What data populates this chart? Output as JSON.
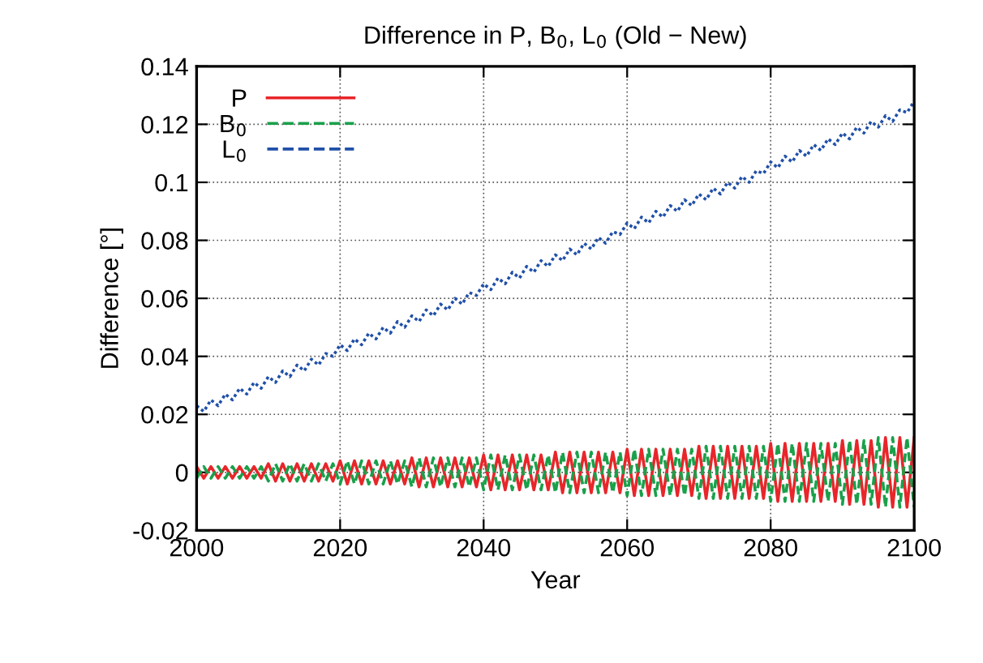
{
  "chart_data": {
    "type": "line",
    "title": "Difference in P, B$_{0}$, L$_{0}$ (Old − New)",
    "xlabel": "Year",
    "ylabel": "Difference [°]",
    "x": [
      2000,
      2001,
      2002,
      2003,
      2004,
      2005,
      2006,
      2007,
      2008,
      2009,
      2010,
      2011,
      2012,
      2013,
      2014,
      2015,
      2016,
      2017,
      2018,
      2019,
      2020,
      2021,
      2022,
      2023,
      2024,
      2025,
      2026,
      2027,
      2028,
      2029,
      2030,
      2031,
      2032,
      2033,
      2034,
      2035,
      2036,
      2037,
      2038,
      2039,
      2040,
      2041,
      2042,
      2043,
      2044,
      2045,
      2046,
      2047,
      2048,
      2049,
      2050,
      2051,
      2052,
      2053,
      2054,
      2055,
      2056,
      2057,
      2058,
      2059,
      2060,
      2061,
      2062,
      2063,
      2064,
      2065,
      2066,
      2067,
      2068,
      2069,
      2070,
      2071,
      2072,
      2073,
      2074,
      2075,
      2076,
      2077,
      2078,
      2079,
      2080,
      2081,
      2082,
      2083,
      2084,
      2085,
      2086,
      2087,
      2088,
      2089,
      2090,
      2091,
      2092,
      2093,
      2094,
      2095,
      2096,
      2097,
      2098,
      2099,
      2100
    ],
    "series": [
      {
        "name": "P",
        "color": "#e8262a",
        "line_style": "solid",
        "values": [
          0.002,
          -0.002,
          0.002,
          -0.002,
          0.002,
          -0.002,
          0.002,
          -0.002,
          0.002,
          -0.002,
          0.003,
          -0.003,
          0.003,
          -0.003,
          0.003,
          -0.003,
          0.003,
          -0.003,
          0.003,
          -0.003,
          0.004,
          -0.004,
          0.004,
          -0.004,
          0.004,
          -0.004,
          0.004,
          -0.004,
          0.004,
          -0.004,
          0.005,
          -0.005,
          0.005,
          -0.005,
          0.005,
          -0.005,
          0.005,
          -0.005,
          0.005,
          -0.005,
          0.006,
          -0.006,
          0.006,
          -0.006,
          0.006,
          -0.006,
          0.006,
          -0.006,
          0.006,
          -0.006,
          0.007,
          -0.007,
          0.007,
          -0.007,
          0.007,
          -0.007,
          0.007,
          -0.007,
          0.007,
          -0.007,
          0.008,
          -0.008,
          0.008,
          -0.008,
          0.008,
          -0.008,
          0.008,
          -0.008,
          0.008,
          -0.008,
          0.009,
          -0.009,
          0.009,
          -0.009,
          0.009,
          -0.009,
          0.009,
          -0.009,
          0.009,
          -0.009,
          0.01,
          -0.01,
          0.01,
          -0.01,
          0.01,
          -0.01,
          0.01,
          -0.01,
          0.01,
          -0.01,
          0.011,
          -0.011,
          0.011,
          -0.011,
          0.011,
          -0.012,
          0.012,
          -0.012,
          0.012,
          -0.012,
          0.012
        ]
      },
      {
        "name": "B$_{0}$",
        "color": "#1aa04a",
        "line_style": "dashed",
        "values": [
          -0.002,
          0.002,
          -0.002,
          0.002,
          -0.002,
          0.002,
          -0.002,
          0.002,
          -0.002,
          0.002,
          -0.003,
          0.003,
          -0.003,
          0.003,
          -0.003,
          0.003,
          -0.003,
          0.003,
          -0.003,
          0.003,
          -0.004,
          0.004,
          -0.004,
          0.004,
          -0.004,
          0.004,
          -0.004,
          0.004,
          -0.004,
          0.004,
          -0.005,
          0.005,
          -0.005,
          0.005,
          -0.005,
          0.005,
          -0.005,
          0.005,
          -0.005,
          0.005,
          -0.006,
          0.006,
          -0.006,
          0.006,
          -0.006,
          0.006,
          -0.006,
          0.006,
          -0.006,
          0.006,
          -0.007,
          0.007,
          -0.007,
          0.007,
          -0.007,
          0.007,
          -0.007,
          0.007,
          -0.007,
          0.007,
          -0.008,
          0.008,
          -0.008,
          0.008,
          -0.008,
          0.008,
          -0.008,
          0.008,
          -0.008,
          0.008,
          -0.009,
          0.009,
          -0.009,
          0.009,
          -0.009,
          0.009,
          -0.009,
          0.009,
          -0.009,
          0.009,
          -0.01,
          0.01,
          -0.01,
          0.01,
          -0.01,
          0.01,
          -0.01,
          0.01,
          -0.01,
          0.01,
          -0.011,
          0.011,
          -0.011,
          0.011,
          -0.011,
          0.012,
          -0.012,
          0.012,
          -0.012,
          0.012,
          -0.012
        ]
      },
      {
        "name": "L$_{0}$",
        "color": "#2050a8",
        "line_style": "dotted",
        "values": [
          0.023,
          0.021,
          0.025,
          0.023,
          0.027,
          0.025,
          0.029,
          0.027,
          0.031,
          0.029,
          0.033,
          0.031,
          0.035,
          0.033,
          0.037,
          0.035,
          0.039,
          0.037,
          0.041,
          0.04,
          0.044,
          0.042,
          0.046,
          0.044,
          0.048,
          0.046,
          0.05,
          0.048,
          0.052,
          0.05,
          0.054,
          0.052,
          0.056,
          0.054,
          0.058,
          0.056,
          0.06,
          0.058,
          0.062,
          0.061,
          0.065,
          0.063,
          0.067,
          0.065,
          0.069,
          0.067,
          0.071,
          0.069,
          0.073,
          0.071,
          0.075,
          0.073,
          0.077,
          0.075,
          0.079,
          0.077,
          0.081,
          0.079,
          0.083,
          0.082,
          0.086,
          0.084,
          0.088,
          0.086,
          0.09,
          0.088,
          0.092,
          0.09,
          0.094,
          0.092,
          0.096,
          0.094,
          0.098,
          0.096,
          0.1,
          0.098,
          0.102,
          0.1,
          0.104,
          0.103,
          0.107,
          0.105,
          0.109,
          0.107,
          0.111,
          0.109,
          0.113,
          0.111,
          0.115,
          0.113,
          0.117,
          0.115,
          0.119,
          0.117,
          0.121,
          0.119,
          0.123,
          0.121,
          0.125,
          0.124,
          0.128
        ]
      }
    ],
    "xlim": [
      2000,
      2100
    ],
    "xticks": [
      2000,
      2020,
      2040,
      2060,
      2080,
      2100
    ],
    "ylim": [
      -0.02,
      0.14
    ],
    "yticks": [
      -0.02,
      0,
      0.02,
      0.04,
      0.06,
      0.08,
      0.1,
      0.12,
      0.14
    ],
    "grid": true,
    "legend": "top left"
  }
}
